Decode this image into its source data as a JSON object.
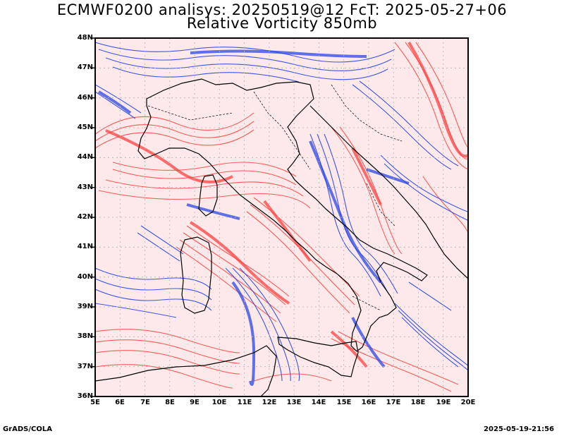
{
  "title_line1": "ECMWF0200 analisys: 20250519@12 FcT: 2025-05-27+06",
  "title_line2": "Relative Vorticity 850mb",
  "lat_labels": [
    "48N",
    "47N",
    "46N",
    "45N",
    "44N",
    "43N",
    "42N",
    "41N",
    "40N",
    "39N",
    "38N",
    "37N",
    "36N"
  ],
  "lon_labels": [
    "5E",
    "6E",
    "7E",
    "8E",
    "9E",
    "10E",
    "11E",
    "12E",
    "13E",
    "14E",
    "15E",
    "16E",
    "17E",
    "18E",
    "19E",
    "20E"
  ],
  "footer_left": "GrADS/COLA",
  "footer_right": "2025-05-19-21:56",
  "colors": {
    "positive": "#ff4040",
    "negative": "#2846e6",
    "border": "#000000",
    "grid": "#b4b4b4"
  }
}
